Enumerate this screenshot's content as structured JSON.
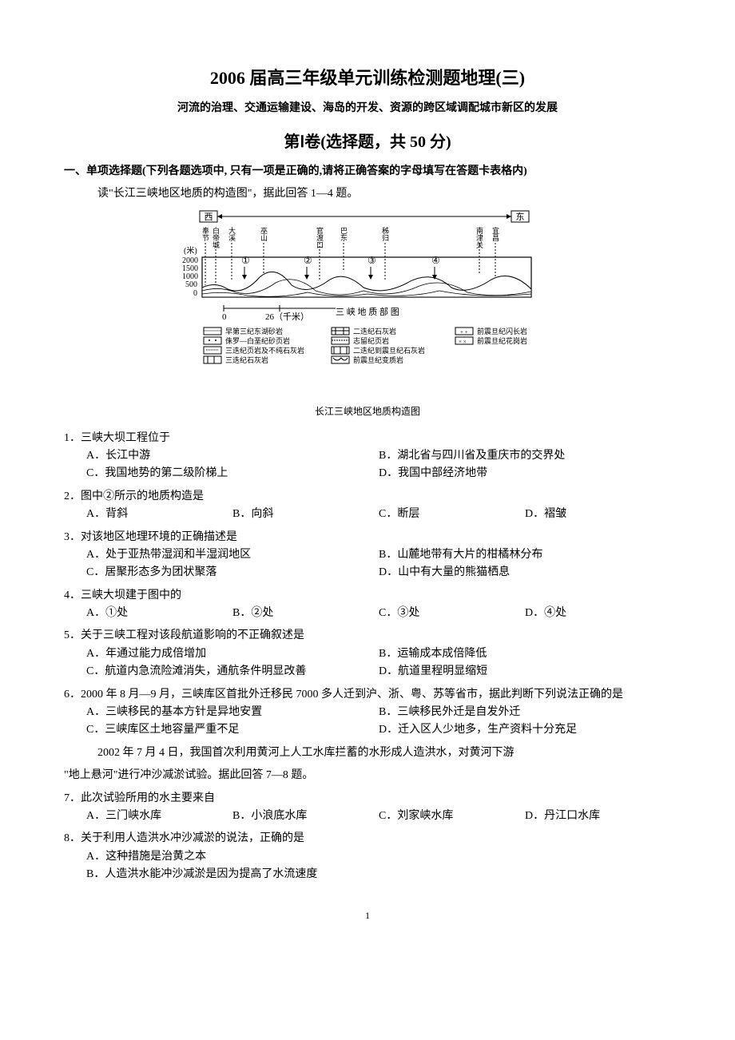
{
  "page": {
    "title": "2006 届高三年级单元训练检测题地理(三)",
    "subtitle": "河流的治理、交通运输建设、海岛的开发、资源的跨区域调配城市新区的发展",
    "section_title": "第Ⅰ卷(选择题，共 50 分)",
    "section_header": "一、单项选择题(下列各题选项中, 只有一项是正确的,请将正确答案的字母填写在答题卡表格内)",
    "instruction1": "读\"长江三峡地区地质的构造图\"，据此回答 1—4 题。",
    "page_number": "1"
  },
  "diagram": {
    "caption": "长江三峡地区地质构造图",
    "top_label": "三 峡 地 质 部 图",
    "west": "西",
    "east": "东",
    "y_label": "(米)",
    "y_ticks": [
      "2000",
      "1500",
      "1000",
      "500",
      "0"
    ],
    "x_start": "0",
    "x_end": "26（千米）",
    "places": [
      "奉节",
      "白帝城",
      "大溪",
      "巫山",
      "官渡口",
      "巴东",
      "秭归",
      "南津关",
      "宜昌"
    ],
    "markers": [
      "①",
      "②",
      "③",
      "④"
    ],
    "legend": [
      "早第三纪东湖砂岩",
      "侏罗—白垩纪砂页岩",
      "三迭纪页岩及不纯石灰岩",
      "三迭纪石灰岩",
      "二迭纪石灰岩",
      "志留纪页岩",
      "二迭纪到震旦纪石灰岩",
      "前震旦纪变质岩",
      "前震旦纪闪长岩",
      "前震旦纪花岗岩"
    ]
  },
  "questions": [
    {
      "num": "1",
      "stem": "三峡大坝工程位于",
      "layout": "half",
      "opts": [
        "A．长江中游",
        "B．湖北省与四川省及重庆市的交界处",
        "C．我国地势的第二级阶梯上",
        "D．我国中部经济地带"
      ]
    },
    {
      "num": "2",
      "stem": "图中②所示的地质构造是",
      "layout": "quarter",
      "opts": [
        "A．背斜",
        "B．向斜",
        "C．断层",
        "D．褶皱"
      ]
    },
    {
      "num": "3",
      "stem": "对该地区地理环境的正确描述是",
      "layout": "half",
      "opts": [
        "A．处于亚热带湿润和半湿润地区",
        "B．山麓地带有大片的柑橘林分布",
        "C．居聚形态多为团状聚落",
        "D．山中有大量的熊猫栖息"
      ]
    },
    {
      "num": "4",
      "stem": "三峡大坝建于图中的",
      "layout": "quarter",
      "opts": [
        "A．①处",
        "B．②处",
        "C．③处",
        "D．④处"
      ]
    },
    {
      "num": "5",
      "stem": "关于三峡工程对该段航道影响的不正确叙述是",
      "layout": "half",
      "opts": [
        "A．年通过能力成倍增加",
        "B．运输成本成倍降低",
        "C．航道内急流险滩消失，通航条件明显改善",
        "D．航道里程明显缩短"
      ]
    },
    {
      "num": "6",
      "stem": "2000 年 8 月—9 月，三峡库区首批外迁移民 7000 多人迁到沪、浙、粤、苏等省市，据此判断下列说法正确的是",
      "layout": "half",
      "opts": [
        "A．三峡移民的基本方针是异地安置",
        "B．三峡移民外迁是自发外迁",
        "C．三峡库区土地容量严重不足",
        "D．迁入区人少地多，生产资料十分充足"
      ]
    }
  ],
  "context2a": "2002 年 7 月 4 日，我国首次利用黄河上人工水库拦蓄的水形成人造洪水，对黄河下游",
  "context2b": "\"地上悬河\"进行冲沙减淤试验。据此回答 7—8 题。",
  "questions2": [
    {
      "num": "7",
      "stem": "此次试验所用的水主要来自",
      "layout": "quarter",
      "opts": [
        "A．三门峡水库",
        "B．小浪底水库",
        "C．刘家峡水库",
        "D．丹江口水库"
      ]
    },
    {
      "num": "8",
      "stem": "关于利用人造洪水冲沙减淤的说法，正确的是",
      "layout": "full",
      "opts": [
        "A．这种措施是治黄之本",
        "B．人造洪水能冲沙减淤是因为提高了水流速度"
      ]
    }
  ]
}
